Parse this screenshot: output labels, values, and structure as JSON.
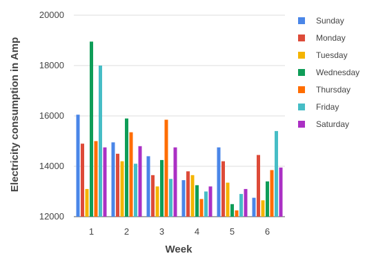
{
  "chart_data": {
    "type": "bar",
    "title": "",
    "xlabel": "Week",
    "ylabel": "Electricity consumption in Amp",
    "categories": [
      "1",
      "2",
      "3",
      "4",
      "5",
      "6"
    ],
    "ylim": [
      12000,
      20000
    ],
    "yticks": [
      12000,
      14000,
      16000,
      18000,
      20000
    ],
    "grid": true,
    "legend_position": "right",
    "series": [
      {
        "name": "Sunday",
        "color": "#4a86e8",
        "values": [
          16050,
          14950,
          14400,
          13450,
          14750,
          12750
        ]
      },
      {
        "name": "Monday",
        "color": "#dd4b39",
        "values": [
          14900,
          14500,
          13650,
          13800,
          14200,
          14450
        ]
      },
      {
        "name": "Tuesday",
        "color": "#f4b400",
        "values": [
          13100,
          14200,
          13200,
          13650,
          13350,
          12650
        ]
      },
      {
        "name": "Wednesday",
        "color": "#0f9d58",
        "values": [
          18950,
          15900,
          14250,
          13250,
          12500,
          13400
        ]
      },
      {
        "name": "Thursday",
        "color": "#ff6d00",
        "values": [
          15000,
          15350,
          15850,
          12700,
          12250,
          13850
        ]
      },
      {
        "name": "Friday",
        "color": "#46bdc6",
        "values": [
          18000,
          14100,
          13500,
          13000,
          12900,
          15400
        ]
      },
      {
        "name": "Saturday",
        "color": "#ab30c4",
        "values": [
          14750,
          14800,
          14750,
          13200,
          13100,
          13950
        ]
      }
    ]
  }
}
